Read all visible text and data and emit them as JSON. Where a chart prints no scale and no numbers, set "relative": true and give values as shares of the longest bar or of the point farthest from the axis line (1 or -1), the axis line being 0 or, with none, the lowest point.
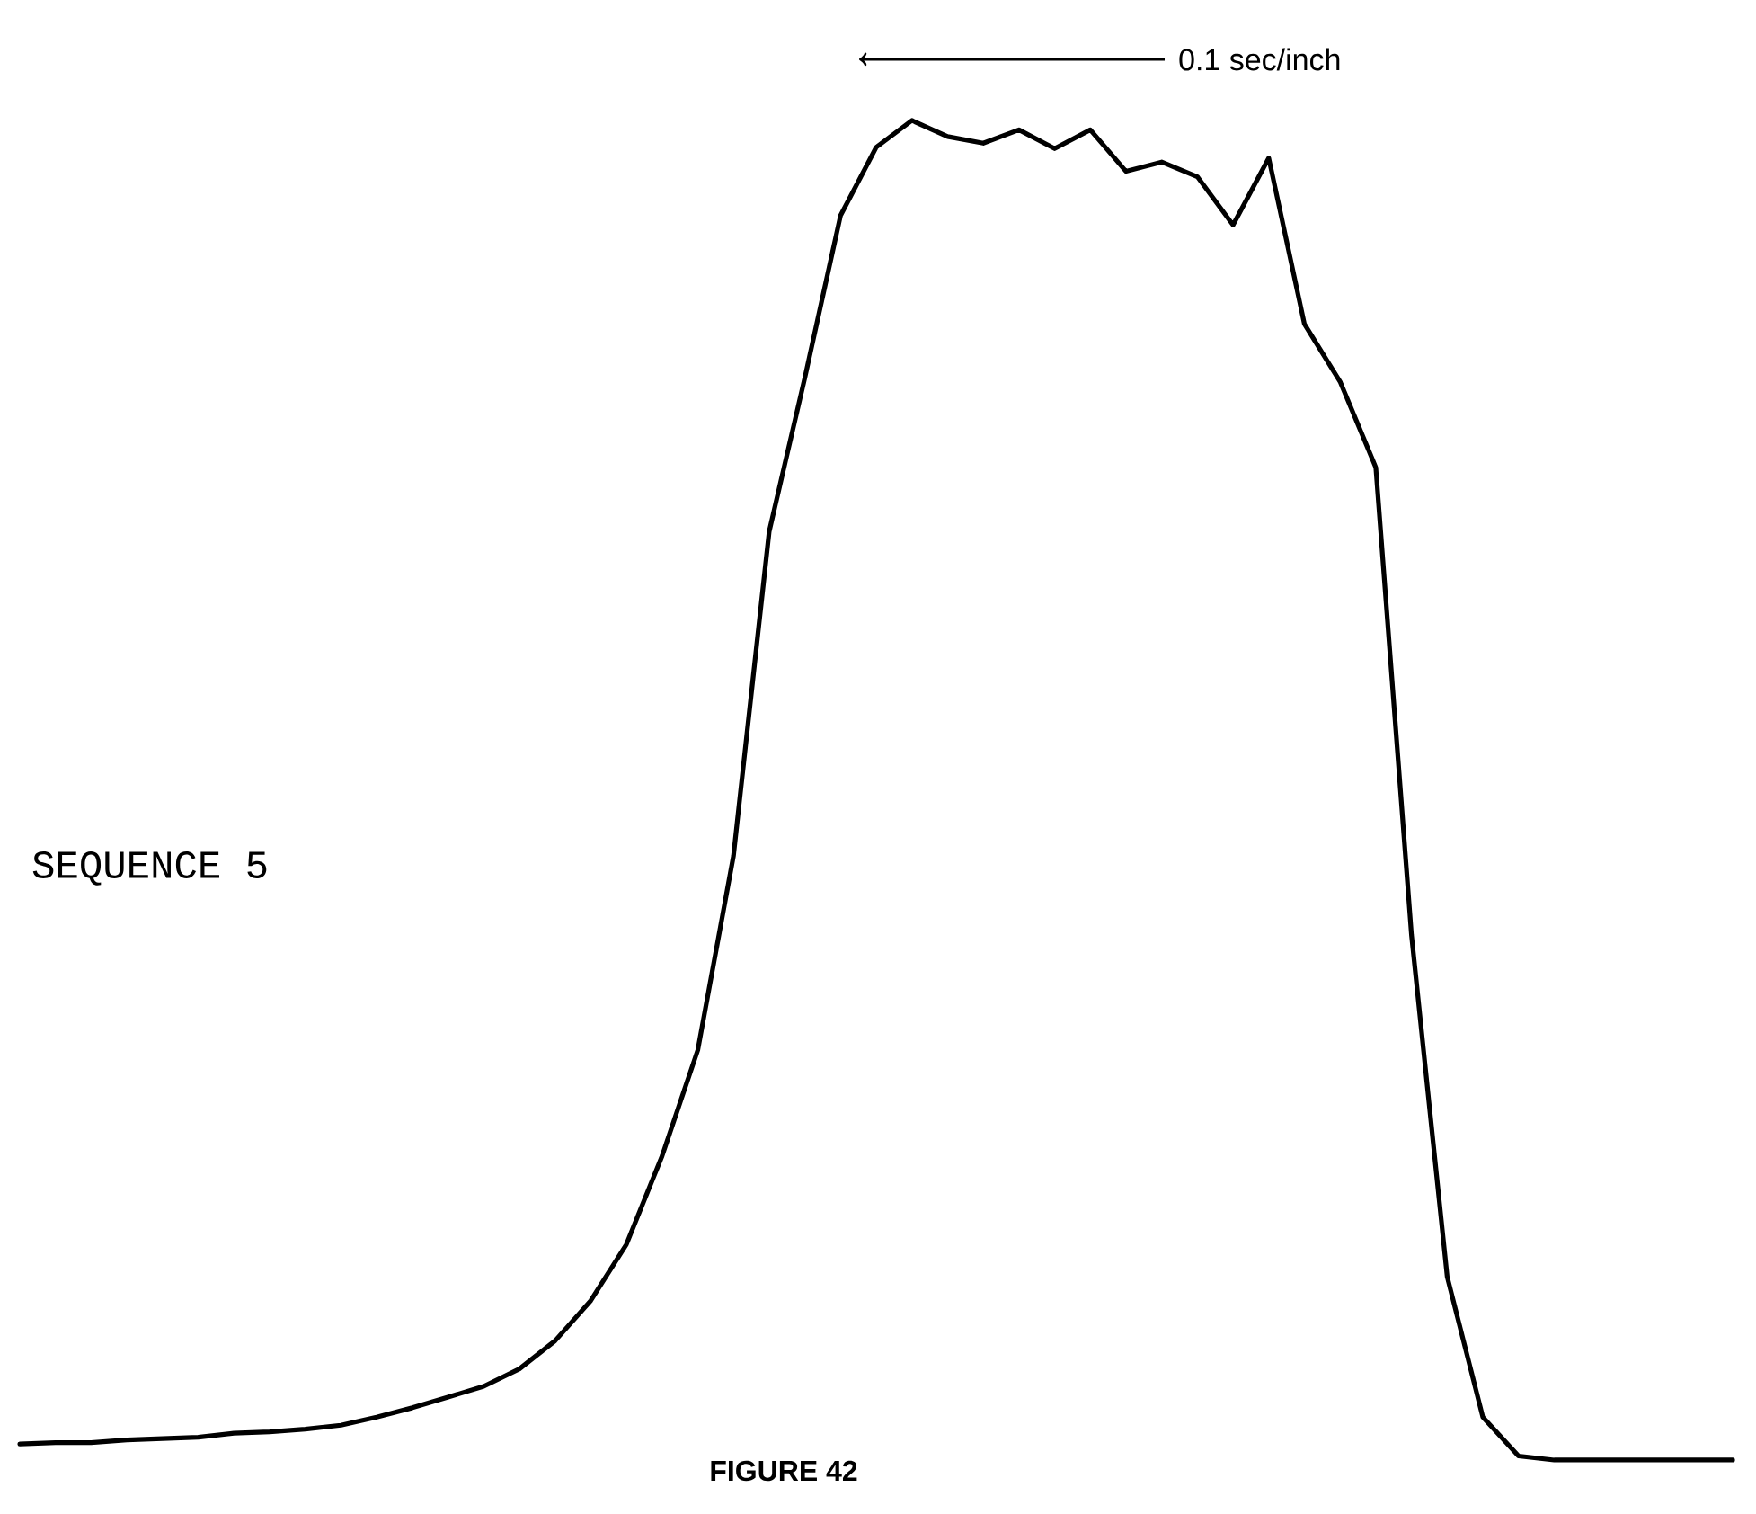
{
  "chart_data": {
    "type": "line",
    "relative": true,
    "tick_labels": false,
    "categories": [
      null,
      null,
      null,
      null,
      null,
      null,
      null,
      null,
      null,
      null,
      null,
      null,
      null,
      null,
      null,
      null,
      null,
      null,
      null,
      null,
      null,
      null,
      null,
      null,
      null,
      null,
      null,
      null,
      null,
      null,
      null,
      null,
      null,
      null,
      null,
      null,
      null,
      null,
      null,
      null,
      null,
      null,
      null,
      null,
      null,
      null,
      null,
      null,
      null
    ],
    "values": [
      0.012,
      0.013,
      0.013,
      0.015,
      0.016,
      0.017,
      0.02,
      0.021,
      0.023,
      0.026,
      0.032,
      0.039,
      0.047,
      0.055,
      0.068,
      0.089,
      0.119,
      0.161,
      0.227,
      0.306,
      0.451,
      0.693,
      0.808,
      0.929,
      0.98,
      1,
      0.988,
      0.983,
      0.993,
      0.979,
      0.993,
      0.962,
      0.969,
      0.958,
      0.922,
      0.972,
      0.848,
      0.805,
      0.741,
      0.392,
      0.137,
      0.032,
      0.003,
      0,
      0,
      0,
      0,
      0,
      0
    ],
    "color": "#000000",
    "annotations": [
      "0.1 sec/inch",
      "SEQUENCE 5",
      "FIGURE 42"
    ]
  }
}
